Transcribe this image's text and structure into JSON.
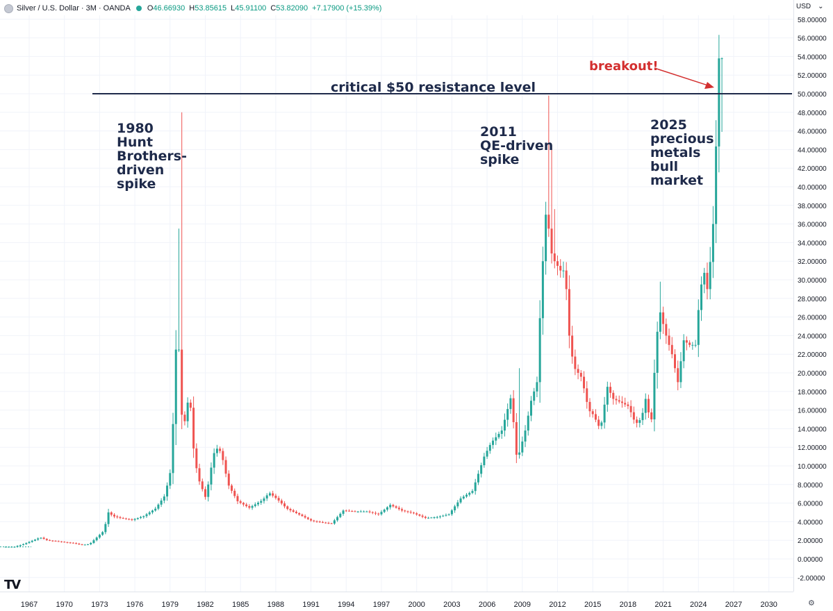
{
  "header": {
    "title": "Silver / U.S. Dollar · 3M · OANDA",
    "open_label": "O",
    "open": "46.66930",
    "high_label": "H",
    "high": "53.85615",
    "low_label": "L",
    "low": "45.91100",
    "close_label": "C",
    "close": "53.82090",
    "change": "+7.17900 (+15.39%)"
  },
  "currency_selector": {
    "label": "USD",
    "icon": "chevron-down-icon"
  },
  "logo": {
    "text": "TV"
  },
  "settings_icon": "gear-icon",
  "colors": {
    "up": "#26a69a",
    "down": "#ef5350",
    "resistance": "#1e2a4a",
    "annotation": "#1e2a4a",
    "breakout": "#d32f2f",
    "grid": "#f0f3fa"
  },
  "chart_data": {
    "type": "candlestick",
    "interval": "3M",
    "ylim": [
      -3,
      58.6
    ],
    "y_ticks": [
      "-2.00000",
      "0.00000",
      "2.00000",
      "4.00000",
      "6.00000",
      "8.00000",
      "10.00000",
      "12.00000",
      "14.00000",
      "16.00000",
      "18.00000",
      "20.00000",
      "22.00000",
      "24.00000",
      "26.00000",
      "28.00000",
      "30.00000",
      "32.00000",
      "34.00000",
      "36.00000",
      "38.00000",
      "40.00000",
      "42.00000",
      "44.00000",
      "46.00000",
      "48.00000",
      "50.00000",
      "52.00000",
      "54.00000",
      "56.00000",
      "58.00000"
    ],
    "x_ticks": [
      "1967",
      "1970",
      "1973",
      "1976",
      "1979",
      "1982",
      "1985",
      "1988",
      "1991",
      "1994",
      "1997",
      "2000",
      "2003",
      "2006",
      "2009",
      "2012",
      "2015",
      "2018",
      "2021",
      "2024",
      "2027",
      "2030"
    ],
    "resistance": {
      "value": 50,
      "label": "critical $50 resistance level"
    },
    "annotations": [
      {
        "lines": [
          "1980",
          "Hunt",
          "Brothers-",
          "driven",
          "spike"
        ]
      },
      {
        "lines": [
          "2011",
          "QE-driven",
          "spike"
        ]
      },
      {
        "lines": [
          "2025",
          "precious",
          "metals",
          "bull",
          "market"
        ]
      },
      {
        "lines": [
          "breakout!"
        ]
      }
    ],
    "anchors": [
      [
        1965.0,
        1.3
      ],
      [
        1966.0,
        1.3
      ],
      [
        1966.8,
        1.6
      ],
      [
        1967.6,
        2.0
      ],
      [
        1968.2,
        2.3
      ],
      [
        1968.8,
        2.0
      ],
      [
        1969.6,
        1.9
      ],
      [
        1970.3,
        1.8
      ],
      [
        1971.0,
        1.7
      ],
      [
        1971.8,
        1.5
      ],
      [
        1972.4,
        1.6
      ],
      [
        1973.0,
        2.3
      ],
      [
        1973.6,
        3.0
      ],
      [
        1974.0,
        5.0
      ],
      [
        1974.4,
        4.6
      ],
      [
        1975.0,
        4.4
      ],
      [
        1976.0,
        4.2
      ],
      [
        1977.0,
        4.6
      ],
      [
        1978.0,
        5.4
      ],
      [
        1978.8,
        6.8
      ],
      [
        1979.3,
        9.5
      ],
      [
        1979.6,
        17.0
      ],
      [
        1979.9,
        28.0
      ],
      [
        1980.1,
        17.0
      ],
      [
        1980.4,
        14.0
      ],
      [
        1980.9,
        18.0
      ],
      [
        1981.3,
        11.0
      ],
      [
        1981.7,
        8.5
      ],
      [
        1982.3,
        6.5
      ],
      [
        1982.7,
        9.5
      ],
      [
        1983.1,
        12.0
      ],
      [
        1983.6,
        11.5
      ],
      [
        1984.2,
        8.0
      ],
      [
        1985.0,
        6.2
      ],
      [
        1986.0,
        5.5
      ],
      [
        1987.1,
        6.3
      ],
      [
        1987.7,
        7.1
      ],
      [
        1988.4,
        6.4
      ],
      [
        1989.2,
        5.4
      ],
      [
        1990.2,
        4.8
      ],
      [
        1991.3,
        4.1
      ],
      [
        1992.3,
        3.9
      ],
      [
        1993.0,
        3.8
      ],
      [
        1994.0,
        5.2
      ],
      [
        1995.0,
        5.1
      ],
      [
        1996.0,
        5.1
      ],
      [
        1997.0,
        4.8
      ],
      [
        1998.0,
        5.8
      ],
      [
        1999.0,
        5.2
      ],
      [
        2000.0,
        4.9
      ],
      [
        2001.0,
        4.4
      ],
      [
        2002.0,
        4.5
      ],
      [
        2003.0,
        4.8
      ],
      [
        2004.0,
        6.5
      ],
      [
        2005.0,
        7.3
      ],
      [
        2006.0,
        11.0
      ],
      [
        2006.6,
        12.5
      ],
      [
        2007.5,
        13.8
      ],
      [
        2008.3,
        17.5
      ],
      [
        2008.8,
        10.5
      ],
      [
        2009.5,
        13.8
      ],
      [
        2010.0,
        17.0
      ],
      [
        2010.5,
        19.0
      ],
      [
        2010.9,
        30.0
      ],
      [
        2011.3,
        38.0
      ],
      [
        2011.7,
        33.0
      ],
      [
        2012.0,
        32.0
      ],
      [
        2012.5,
        31.0
      ],
      [
        2012.9,
        31.0
      ],
      [
        2013.3,
        23.0
      ],
      [
        2013.7,
        20.5
      ],
      [
        2014.3,
        19.5
      ],
      [
        2014.9,
        16.0
      ],
      [
        2015.3,
        15.5
      ],
      [
        2015.9,
        13.9
      ],
      [
        2016.5,
        18.5
      ],
      [
        2017.0,
        17.2
      ],
      [
        2017.7,
        16.8
      ],
      [
        2018.3,
        16.4
      ],
      [
        2018.9,
        14.5
      ],
      [
        2019.4,
        15.1
      ],
      [
        2019.8,
        17.5
      ],
      [
        2020.2,
        14.0
      ],
      [
        2020.7,
        24.0
      ],
      [
        2021.0,
        26.5
      ],
      [
        2021.5,
        24.0
      ],
      [
        2022.0,
        22.0
      ],
      [
        2022.5,
        19.0
      ],
      [
        2023.0,
        23.5
      ],
      [
        2023.5,
        23.0
      ],
      [
        2024.0,
        23.0
      ],
      [
        2024.4,
        29.0
      ],
      [
        2024.8,
        31.0
      ],
      [
        2025.0,
        29.0
      ],
      [
        2025.3,
        32.5
      ],
      [
        2025.5,
        36.0
      ],
      [
        2025.8,
        46.0
      ],
      [
        2026.0,
        53.8
      ]
    ]
  }
}
